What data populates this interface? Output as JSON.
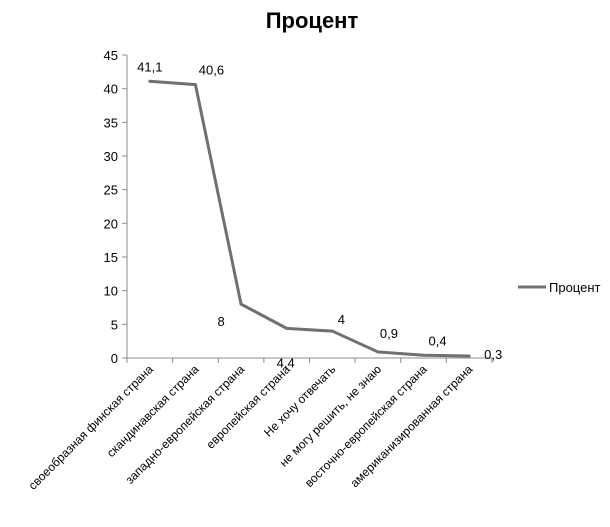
{
  "chart_data": {
    "type": "line",
    "title": "Процент",
    "xlabel": "",
    "ylabel": "",
    "ylim": [
      0,
      45
    ],
    "yticks": [
      0,
      5,
      10,
      15,
      20,
      25,
      30,
      35,
      40,
      45
    ],
    "grid": false,
    "legend_position": "right",
    "categories": [
      "своеобразная финская страна",
      "скандинавская страна",
      "западно-европейская страна",
      "европейская страна",
      "Не хочу отвечать",
      "не могу решить, не знаю",
      "восточно-европейская страна",
      "американизированная страна"
    ],
    "series": [
      {
        "name": "Процент",
        "color": "#707070",
        "values": [
          41.1,
          40.6,
          8,
          4.4,
          4,
          0.9,
          0.4,
          0.3
        ],
        "data_labels": [
          "41,1",
          "40,6",
          "8",
          "4,4",
          "4",
          "0,9",
          "0,4",
          "0,3"
        ]
      }
    ]
  }
}
